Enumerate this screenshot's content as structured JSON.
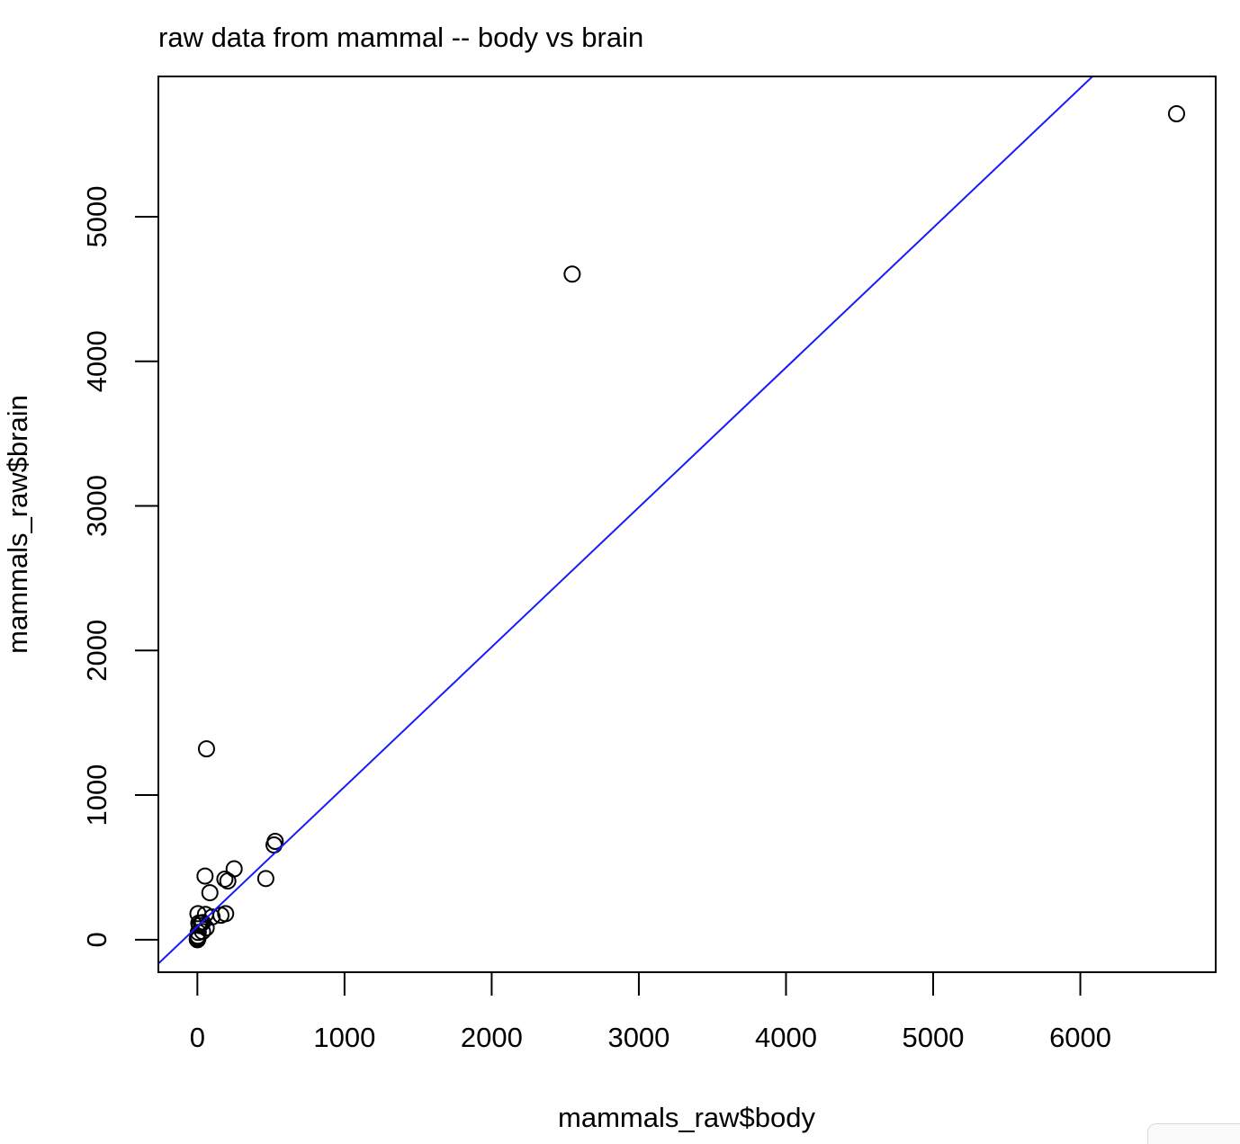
{
  "chart_data": {
    "type": "scatter",
    "title": "raw data from mammal -- body vs brain",
    "xlabel": "mammals_raw$body",
    "ylabel": "mammals_raw$brain",
    "xlim": [
      -265,
      6920
    ],
    "ylim": [
      -225,
      5970
    ],
    "x_ticks": [
      0,
      1000,
      2000,
      3000,
      4000,
      5000,
      6000
    ],
    "y_ticks": [
      0,
      1000,
      2000,
      3000,
      4000,
      5000
    ],
    "x_tick_labels": [
      "0",
      "1000",
      "2000",
      "3000",
      "4000",
      "5000",
      "6000"
    ],
    "y_tick_labels": [
      "0",
      "1000",
      "2000",
      "3000",
      "4000",
      "5000"
    ],
    "grid": false,
    "fit_line": {
      "color": "#1a1aff",
      "intercept": 91,
      "slope": 0.9665
    },
    "point_color": "#000000",
    "points": [
      {
        "x": 6654,
        "y": 5712
      },
      {
        "x": 2547,
        "y": 4603
      },
      {
        "x": 62,
        "y": 1320
      },
      {
        "x": 521,
        "y": 655
      },
      {
        "x": 529,
        "y": 680
      },
      {
        "x": 250,
        "y": 490
      },
      {
        "x": 465,
        "y": 423
      },
      {
        "x": 52,
        "y": 440
      },
      {
        "x": 187,
        "y": 419
      },
      {
        "x": 207,
        "y": 406
      },
      {
        "x": 85,
        "y": 325
      },
      {
        "x": 192,
        "y": 180
      },
      {
        "x": 160,
        "y": 169
      },
      {
        "x": 100,
        "y": 157
      },
      {
        "x": 55,
        "y": 175
      },
      {
        "x": 27,
        "y": 115
      },
      {
        "x": 36,
        "y": 119
      },
      {
        "x": 4,
        "y": 180
      },
      {
        "x": 10,
        "y": 115
      },
      {
        "x": 60,
        "y": 81
      },
      {
        "x": 35,
        "y": 56
      },
      {
        "x": 14,
        "y": 98
      },
      {
        "x": 6,
        "y": 50
      },
      {
        "x": 3,
        "y": 25
      },
      {
        "x": 4,
        "y": 12
      },
      {
        "x": 1,
        "y": 6
      },
      {
        "x": 0.5,
        "y": 3
      },
      {
        "x": 0.1,
        "y": 1
      },
      {
        "x": 2,
        "y": 12
      },
      {
        "x": 0.9,
        "y": 2.6
      },
      {
        "x": 0.8,
        "y": 4
      },
      {
        "x": 0.01,
        "y": 0.3
      },
      {
        "x": 0.2,
        "y": 2
      },
      {
        "x": 1.4,
        "y": 12.5
      },
      {
        "x": 3.4,
        "y": 10.8
      },
      {
        "x": 0.05,
        "y": 0.4
      }
    ]
  }
}
